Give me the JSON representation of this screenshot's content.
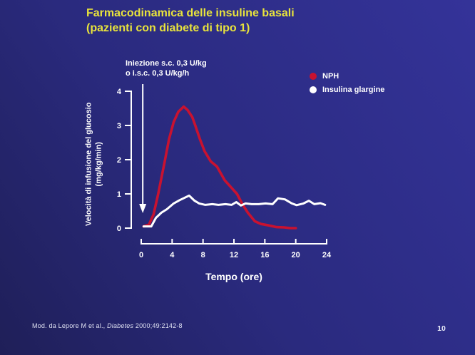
{
  "slide": {
    "title": "Farmacodinamica delle insuline basali\n(pazienti con diabete di tipo 1)",
    "footer": {
      "prefix": "Mod. da Lepore M et al., ",
      "journal": "Diabetes",
      "suffix": " 2000;49:2142-8"
    },
    "page_number": "10"
  },
  "colors": {
    "title_yellow": "#e8e33c",
    "background_dark": "#1f1f58",
    "background_light": "#343399",
    "axis_white": "#ffffff",
    "nph_red": "#c81230",
    "glargine_white": "#ffffff"
  },
  "chart_data": {
    "type": "line",
    "title": "",
    "xlabel": "Tempo (ore)",
    "ylabel": "Velocità di infusione del glucosio\n(mg/kg/min)",
    "xlim": [
      0,
      24
    ],
    "ylim": [
      0,
      4
    ],
    "xticks": [
      0,
      4,
      8,
      12,
      16,
      20,
      24
    ],
    "yticks": [
      0,
      1,
      2,
      3,
      4
    ],
    "grid": false,
    "legend_position": "top-right",
    "annotation": "Iniezione s.c. 0,3 U/kg\no i.s.c. 0,3 U/kg/h",
    "arrow_x_hour": 0.2,
    "series": [
      {
        "name": "NPH",
        "color": "#c81230",
        "x": [
          0.3,
          1.0,
          1.6,
          2.2,
          3.0,
          3.6,
          4.2,
          4.8,
          5.5,
          6.0,
          6.6,
          7.0,
          7.6,
          8.2,
          9.0,
          9.8,
          10.8,
          11.6,
          12.4,
          13.1,
          13.8,
          14.7,
          15.5,
          16.5,
          17.5,
          18.5,
          19.3,
          20.0
        ],
        "y": [
          0.05,
          0.1,
          0.4,
          1.0,
          1.9,
          2.6,
          3.1,
          3.4,
          3.55,
          3.45,
          3.25,
          3.0,
          2.6,
          2.25,
          1.95,
          1.8,
          1.4,
          1.2,
          1.0,
          0.7,
          0.45,
          0.2,
          0.12,
          0.08,
          0.03,
          0.02,
          0.0,
          0.0
        ]
      },
      {
        "name": "Insulina glargine",
        "color": "#ffffff",
        "x": [
          0.3,
          1.3,
          1.9,
          2.6,
          3.3,
          4.2,
          5.0,
          6.2,
          6.9,
          7.5,
          8.3,
          9.2,
          10.0,
          10.9,
          11.7,
          12.3,
          12.9,
          13.5,
          14.3,
          15.2,
          16.1,
          17.0,
          17.7,
          18.6,
          19.5,
          20.1,
          21.0,
          21.7,
          22.4,
          23.2,
          23.8
        ],
        "y": [
          0.05,
          0.05,
          0.3,
          0.45,
          0.55,
          0.72,
          0.82,
          0.95,
          0.8,
          0.72,
          0.68,
          0.7,
          0.68,
          0.7,
          0.68,
          0.76,
          0.66,
          0.72,
          0.7,
          0.7,
          0.72,
          0.7,
          0.87,
          0.84,
          0.72,
          0.67,
          0.72,
          0.8,
          0.7,
          0.73,
          0.68
        ]
      }
    ]
  }
}
